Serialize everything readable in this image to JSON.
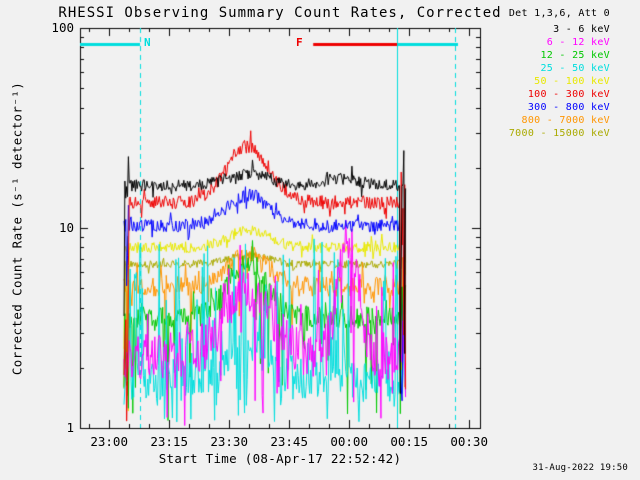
{
  "title": "RHESSI Observing Summary Count Rates, Corrected",
  "timestamp": "31-Aug-2022 19:50",
  "legend": {
    "header": "Det 1,3,6, Att 0",
    "entries": [
      {
        "label": "3 - 6 keV",
        "color": "#000000"
      },
      {
        "label": "6 - 12 keV",
        "color": "#ff00ff"
      },
      {
        "label": "12 - 25 keV",
        "color": "#00c800"
      },
      {
        "label": "25 - 50 keV",
        "color": "#00dede"
      },
      {
        "label": "50 - 100 keV",
        "color": "#e8e800"
      },
      {
        "label": "100 - 300 keV",
        "color": "#ee0000"
      },
      {
        "label": "300 - 800 keV",
        "color": "#0000ff"
      },
      {
        "label": "800 - 7000 keV",
        "color": "#ff9500"
      },
      {
        "label": "7000 - 15000 keV",
        "color": "#aaaa00"
      }
    ]
  },
  "chart_data": {
    "type": "line",
    "title": "RHESSI Observing Summary Count Rates, Corrected",
    "xlabel": "Start Time (08-Apr-17 22:52:42)",
    "ylabel": "Corrected Count Rate (s⁻¹ detector⁻¹)",
    "y_scale": "log",
    "ylim": [
      1,
      100
    ],
    "x_ticks": [
      "23:00",
      "23:15",
      "23:30",
      "23:45",
      "00:00",
      "00:15",
      "00:30"
    ],
    "x_tick_minutes": [
      7.3,
      22.3,
      37.3,
      52.3,
      67.3,
      82.3,
      97.3
    ],
    "x_minor_tick_step_min": 5,
    "x_range_minutes": [
      0,
      100
    ],
    "y_ticks": [
      {
        "value": 1,
        "label": "1"
      },
      {
        "value": 10,
        "label": "10"
      },
      {
        "value": 100,
        "label": "100"
      }
    ],
    "t_start_min": 11,
    "t_end_min": 81.5,
    "series": [
      {
        "label": "7000 - 15000 keV",
        "color": "#aaaa00",
        "base": 6.6,
        "noise_log": 0.02,
        "bumps": [
          {
            "center_min": 42,
            "width_min": 5,
            "amp": 1.1
          }
        ]
      },
      {
        "label": "50 - 100 keV",
        "color": "#e8e800",
        "base": 8.0,
        "noise_log": 0.028,
        "bumps": [
          {
            "center_min": 42,
            "width_min": 5,
            "amp": 1.22
          }
        ]
      },
      {
        "label": "800 - 7000 keV",
        "color": "#ff9500",
        "base": 5.1,
        "noise_log": 0.05,
        "bumps": [
          {
            "center_min": 42,
            "width_min": 5,
            "amp": 1.45
          }
        ],
        "spikes": {
          "prob": 0.05,
          "lo": -0.3,
          "hi": 0.05,
          "mode": "rel"
        }
      },
      {
        "label": "12 - 25 keV",
        "color": "#00c800",
        "base": 3.6,
        "noise_log": 0.055,
        "bumps": [
          {
            "center_min": 42,
            "width_min": 5,
            "amp": 1.85
          }
        ],
        "spikes": {
          "prob": 0.09,
          "lo": -0.5,
          "hi": 0.0,
          "mode": "rel"
        }
      },
      {
        "label": "25 - 50 keV",
        "color": "#00dede",
        "base": 1.7,
        "noise_log": 0.1,
        "bumps": [
          {
            "center_min": 42,
            "width_min": 6,
            "amp": 1.5
          }
        ],
        "spikes": {
          "prob": 0.3,
          "lo": 0.02,
          "hi": 0.95,
          "mode": "abs"
        }
      },
      {
        "label": "6 - 12 keV",
        "color": "#ff00ff",
        "base": 2.3,
        "noise_log": 0.12,
        "bumps": [
          {
            "center_min": 42,
            "width_min": 6,
            "amp": 2.0
          },
          {
            "center_min": 67,
            "width_min": 2.5,
            "amp": 4.0
          }
        ],
        "spikes": {
          "prob": 0.12,
          "lo": 0.0,
          "hi": 0.9,
          "mode": "abs"
        }
      },
      {
        "label": "300 - 800 keV",
        "color": "#0000ff",
        "base": 10.3,
        "noise_log": 0.032,
        "bumps": [
          {
            "center_min": 42,
            "width_min": 5,
            "amp": 1.42
          }
        ]
      },
      {
        "label": "100 - 300 keV",
        "color": "#ee0000",
        "base": 13.4,
        "noise_log": 0.035,
        "bumps": [
          {
            "center_min": 42,
            "width_min": 5.5,
            "amp": 1.9
          }
        ]
      },
      {
        "label": "3 - 6 keV",
        "color": "#000000",
        "base": 16.3,
        "noise_log": 0.03,
        "bumps": [
          {
            "center_min": 42,
            "width_min": 5,
            "amp": 1.15
          },
          {
            "center_min": 65,
            "width_min": 5,
            "amp": 1.08
          }
        ]
      }
    ],
    "flags": {
      "bar_value": 83,
      "vline_color": "#00dede",
      "dashed_vlines_min": [
        15.0,
        93.8
      ],
      "solid_vlines_min": [
        79.3
      ],
      "bars": [
        {
          "label": "N",
          "color": "#00dede",
          "start_min": 0,
          "end_min": 15.0,
          "label_min": 17.0
        },
        {
          "label": "F",
          "color": "#ee0000",
          "start_min": 58.3,
          "end_min": 79.3,
          "label_min": 55.0
        },
        {
          "label": "",
          "color": "#00dede",
          "start_min": 79.3,
          "end_min": 94.5,
          "label_min": null
        }
      ]
    }
  }
}
